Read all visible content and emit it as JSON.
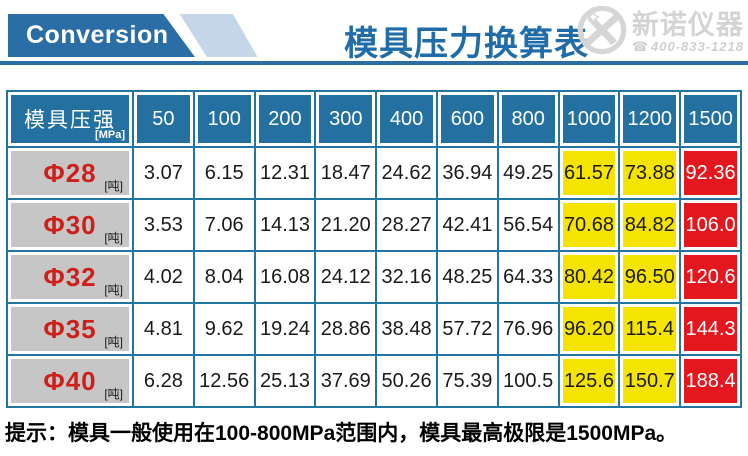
{
  "header": {
    "banner_label": "Conversion",
    "title": "模具压力换算表",
    "logo": {
      "brand": "新诺仪器",
      "phone": "400-833-1218"
    }
  },
  "table": {
    "corner_label": "模具压强",
    "corner_unit": "[MPa]",
    "columns": [
      "50",
      "100",
      "200",
      "300",
      "400",
      "600",
      "800",
      "1000",
      "1200",
      "1500"
    ],
    "row_unit": "[吨]",
    "rows": [
      {
        "label": "Φ28",
        "values": [
          "3.07",
          "6.15",
          "12.31",
          "18.47",
          "24.62",
          "36.94",
          "49.25",
          "61.57",
          "73.88",
          "92.36"
        ]
      },
      {
        "label": "Φ30",
        "values": [
          "3.53",
          "7.06",
          "14.13",
          "21.20",
          "28.27",
          "42.41",
          "56.54",
          "70.68",
          "84.82",
          "106.0"
        ]
      },
      {
        "label": "Φ32",
        "values": [
          "4.02",
          "8.04",
          "16.08",
          "24.12",
          "32.16",
          "48.25",
          "64.33",
          "80.42",
          "96.50",
          "120.6"
        ]
      },
      {
        "label": "Φ35",
        "values": [
          "4.81",
          "9.62",
          "19.24",
          "28.86",
          "38.48",
          "57.72",
          "76.96",
          "96.20",
          "115.4",
          "144.3"
        ]
      },
      {
        "label": "Φ40",
        "values": [
          "6.28",
          "12.56",
          "25.13",
          "37.69",
          "50.26",
          "75.39",
          "100.5",
          "125.6",
          "150.7",
          "188.4"
        ]
      }
    ],
    "yellow_col_indexes": [
      7,
      8
    ],
    "red_col_indexes": [
      9
    ]
  },
  "note": "提示：模具一般使用在100-800MPa范围内，模具最高极限是1500MPa。",
  "colors": {
    "primary_blue": "#2B6DA5",
    "header_cell_blue": "#2471A1",
    "grid_blue": "#2474A2",
    "light_blue_band": "#C5D6E9",
    "label_gray": "#C6C6C6",
    "phi_red": "#CD201C",
    "warn_yellow": "#F5E400",
    "max_red": "#E4161E",
    "logo_gray": "#D4D4D4"
  },
  "chart_data": {
    "type": "table",
    "title": "模具压力换算表",
    "x_header": "模具压强 [MPa]",
    "columns_mpa": [
      50,
      100,
      200,
      300,
      400,
      600,
      800,
      1000,
      1200,
      1500
    ],
    "row_unit": "吨",
    "rows": [
      {
        "mold_diameter": "Φ28",
        "values": [
          3.07,
          6.15,
          12.31,
          18.47,
          24.62,
          36.94,
          49.25,
          61.57,
          73.88,
          92.36
        ]
      },
      {
        "mold_diameter": "Φ30",
        "values": [
          3.53,
          7.06,
          14.13,
          21.2,
          28.27,
          42.41,
          56.54,
          70.68,
          84.82,
          106.0
        ]
      },
      {
        "mold_diameter": "Φ32",
        "values": [
          4.02,
          8.04,
          16.08,
          24.12,
          32.16,
          48.25,
          64.33,
          80.42,
          96.5,
          120.6
        ]
      },
      {
        "mold_diameter": "Φ35",
        "values": [
          4.81,
          9.62,
          19.24,
          28.86,
          38.48,
          57.72,
          76.96,
          96.2,
          115.4,
          144.3
        ]
      },
      {
        "mold_diameter": "Φ40",
        "values": [
          6.28,
          12.56,
          25.13,
          37.69,
          50.26,
          75.39,
          100.5,
          125.6,
          150.7,
          188.4
        ]
      }
    ],
    "highlight": {
      "yellow_columns_mpa": [
        1000,
        1200
      ],
      "red_columns_mpa": [
        1500
      ]
    },
    "annotation": "提示：模具一般使用在100-800MPa范围内，模具最高极限是1500MPa。"
  }
}
